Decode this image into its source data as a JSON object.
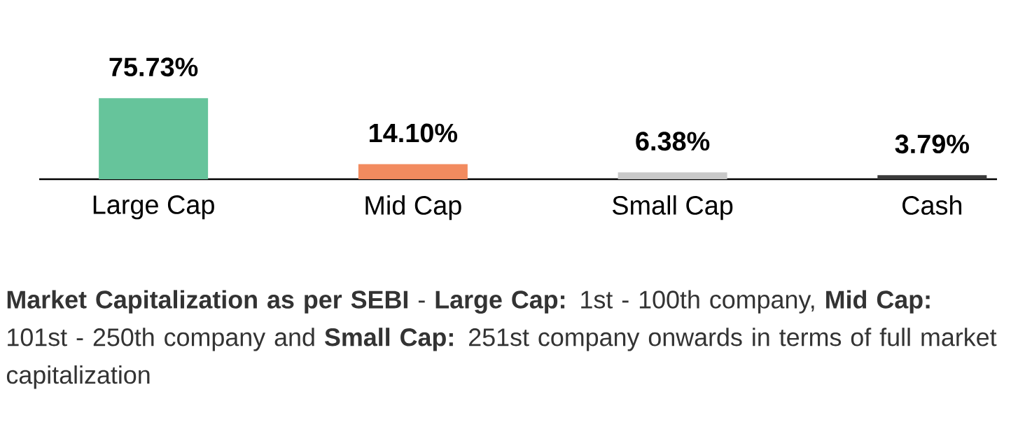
{
  "chart_data": {
    "type": "bar",
    "categories": [
      "Large Cap",
      "Mid Cap",
      "Small Cap",
      "Cash"
    ],
    "values": [
      75.73,
      14.1,
      6.38,
      3.79
    ],
    "colors": [
      "#66c49b",
      "#f28b5f",
      "#c9c9c9",
      "#3a3a3a"
    ],
    "value_labels": [
      "75.73%",
      "14.10%",
      "6.38%",
      "3.79%"
    ],
    "annotations": [
      "**Market Capitalization as per SEBI** - **Large Cap:** 1st - 100th company, **Mid Cap:** 101st - 250th company and **Small Cap:** 251st company onwards in terms of full market capitalization"
    ]
  }
}
